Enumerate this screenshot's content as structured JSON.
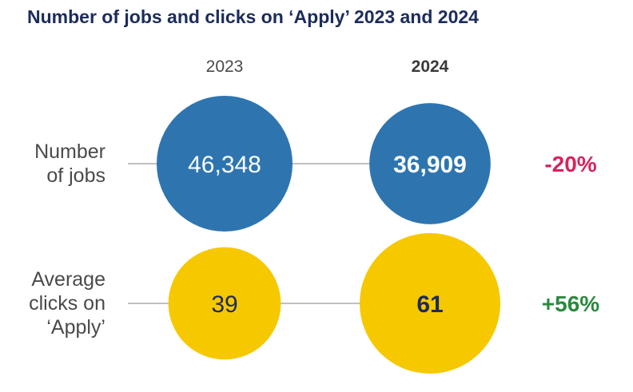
{
  "title": "Number of jobs and clicks on ‘Apply’ 2023 and 2024",
  "chart_data": {
    "type": "bubble",
    "title": "Number of jobs and clicks on ‘Apply’ 2023 and 2024",
    "columns": [
      {
        "label": "2023",
        "bold": false
      },
      {
        "label": "2024",
        "bold": true
      }
    ],
    "rows": [
      {
        "label_lines": [
          "Number",
          "of jobs"
        ],
        "values": [
          46348,
          36909
        ],
        "value_labels": [
          "46,348",
          "36,909"
        ],
        "change": "-20%",
        "color": "#2e75b0",
        "value_text_color": "#ffffff",
        "change_color": "#d6245c"
      },
      {
        "label_lines": [
          "Average",
          "clicks on",
          "‘Apply’"
        ],
        "values": [
          39,
          61
        ],
        "value_labels": [
          "39",
          "61"
        ],
        "change": "+56%",
        "color": "#f6c800",
        "value_text_color": "#1c2c5b",
        "change_color": "#2a8a3e"
      }
    ]
  },
  "line_color": "#9a9a9a"
}
